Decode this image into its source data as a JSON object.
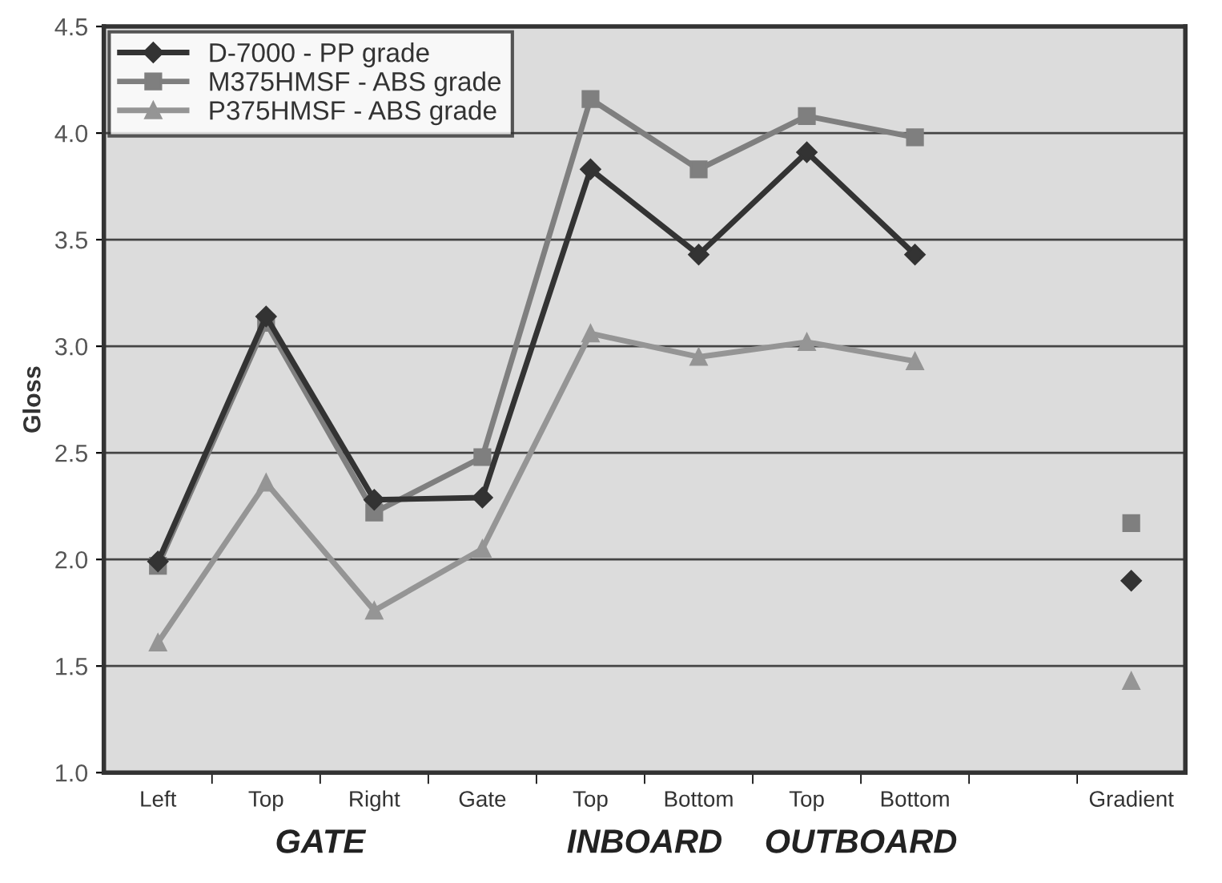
{
  "chart_data": {
    "type": "line",
    "ylabel": "Gloss",
    "categories": [
      "Left",
      "Top",
      "Right",
      "Gate",
      "Top",
      "Bottom",
      "Top",
      "Bottom",
      null,
      "Gradient"
    ],
    "series": [
      {
        "name": "D-7000 - PP grade",
        "color": "#333333",
        "marker": "diamond",
        "values": [
          1.99,
          3.14,
          2.28,
          2.29,
          3.83,
          3.43,
          3.91,
          3.43,
          null,
          1.9
        ]
      },
      {
        "name": "M375HMSF - ABS grade",
        "color": "#7f7f7f",
        "marker": "square",
        "values": [
          1.97,
          3.11,
          2.22,
          2.48,
          4.16,
          3.83,
          4.08,
          3.98,
          null,
          2.17
        ]
      },
      {
        "name": "P375HMSF - ABS grade",
        "color": "#959595",
        "marker": "triangle",
        "values": [
          1.61,
          2.36,
          1.76,
          2.05,
          3.06,
          2.95,
          3.02,
          2.93,
          null,
          1.43
        ]
      }
    ],
    "ylim": [
      1.0,
      4.5
    ],
    "yticks": [
      {
        "value": 1.0,
        "label": "1.0"
      },
      {
        "value": 1.5,
        "label": "1.5"
      },
      {
        "value": 2.0,
        "label": "2.0"
      },
      {
        "value": 2.5,
        "label": "2.5"
      },
      {
        "value": 3.0,
        "label": "3.0"
      },
      {
        "value": 3.5,
        "label": "3.5"
      },
      {
        "value": 4.0,
        "label": "4.0"
      },
      {
        "value": 4.5,
        "label": "4.5"
      }
    ],
    "grid": "y",
    "legend": "top left",
    "annotations": [
      "GATE",
      "INBOARD",
      "OUTBOARD"
    ]
  }
}
